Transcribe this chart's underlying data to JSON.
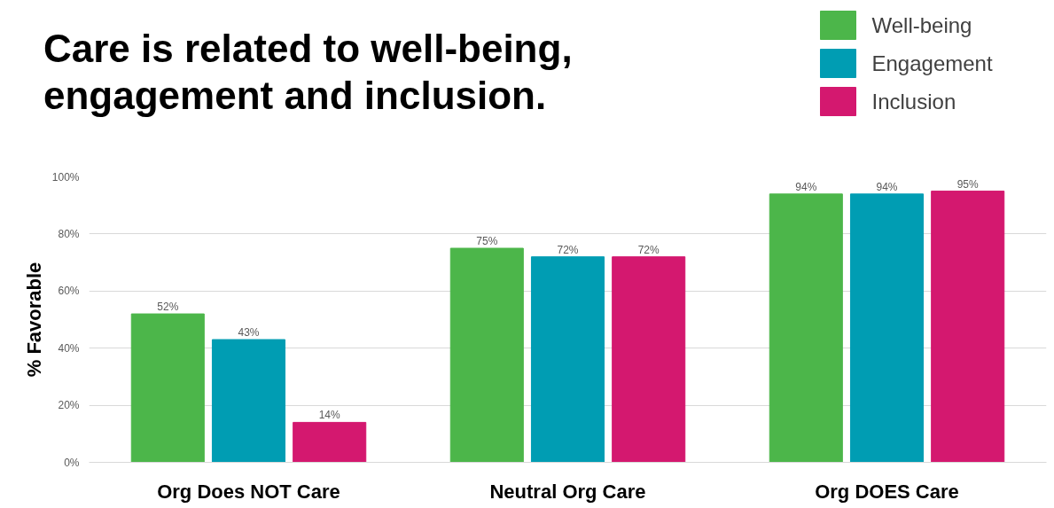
{
  "chart_data": {
    "type": "bar",
    "title": "Care is related to well-being,\nengagement and inclusion.",
    "ylabel": "% Favorable",
    "categories": [
      "Org Does NOT Care",
      "Neutral Org Care",
      "Org DOES Care"
    ],
    "series": [
      {
        "name": "Well-being",
        "color": "#4cb64a",
        "values": [
          52,
          75,
          94
        ],
        "value_labels": [
          "52%",
          "75%",
          "94%"
        ]
      },
      {
        "name": "Engagement",
        "color": "#009db3",
        "values": [
          43,
          72,
          94
        ],
        "value_labels": [
          "43%",
          "72%",
          "94%"
        ]
      },
      {
        "name": "Inclusion",
        "color": "#d4186f",
        "values": [
          14,
          72,
          95
        ],
        "value_labels": [
          "14%",
          "72%",
          "95%"
        ]
      }
    ],
    "ylim": [
      0,
      100
    ],
    "yticks": [
      {
        "value": 0,
        "label": "0%"
      },
      {
        "value": 20,
        "label": "20%"
      },
      {
        "value": 40,
        "label": "40%"
      },
      {
        "value": 60,
        "label": "60%"
      },
      {
        "value": 80,
        "label": "80%"
      },
      {
        "value": 100,
        "label": "100%"
      }
    ],
    "grid": "y",
    "legend": "top right"
  }
}
